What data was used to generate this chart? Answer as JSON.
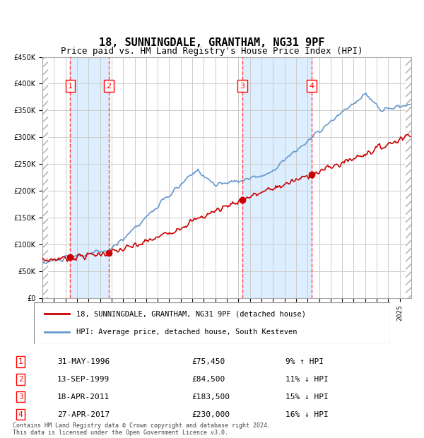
{
  "title": "18, SUNNINGDALE, GRANTHAM, NG31 9PF",
  "subtitle": "Price paid vs. HM Land Registry's House Price Index (HPI)",
  "sale_dates": [
    "1996-05-31",
    "1999-09-13",
    "2011-04-18",
    "2017-04-27"
  ],
  "sale_prices": [
    75450,
    84500,
    183500,
    230000
  ],
  "sale_labels": [
    "1",
    "2",
    "3",
    "4"
  ],
  "sale_table": [
    [
      "1",
      "31-MAY-1996",
      "£75,450",
      "9% ↑ HPI"
    ],
    [
      "2",
      "13-SEP-1999",
      "£84,500",
      "11% ↓ HPI"
    ],
    [
      "3",
      "18-APR-2011",
      "£183,500",
      "15% ↓ HPI"
    ],
    [
      "4",
      "27-APR-2017",
      "£230,000",
      "16% ↓ HPI"
    ]
  ],
  "legend_property": "18, SUNNINGDALE, GRANTHAM, NG31 9PF (detached house)",
  "legend_hpi": "HPI: Average price, detached house, South Kesteven",
  "footer": "Contains HM Land Registry data © Crown copyright and database right 2024.\nThis data is licensed under the Open Government Licence v3.0.",
  "property_color": "#cc0000",
  "hpi_color": "#6699cc",
  "dot_color": "#cc0000",
  "shade_color": "#ddeeff",
  "ylim": [
    0,
    450000
  ],
  "yticks": [
    0,
    50000,
    100000,
    150000,
    200000,
    250000,
    300000,
    350000,
    400000,
    450000
  ],
  "background_hatch_color": "#cccccc",
  "grid_color": "#cccccc",
  "dashed_color": "#ff4444"
}
